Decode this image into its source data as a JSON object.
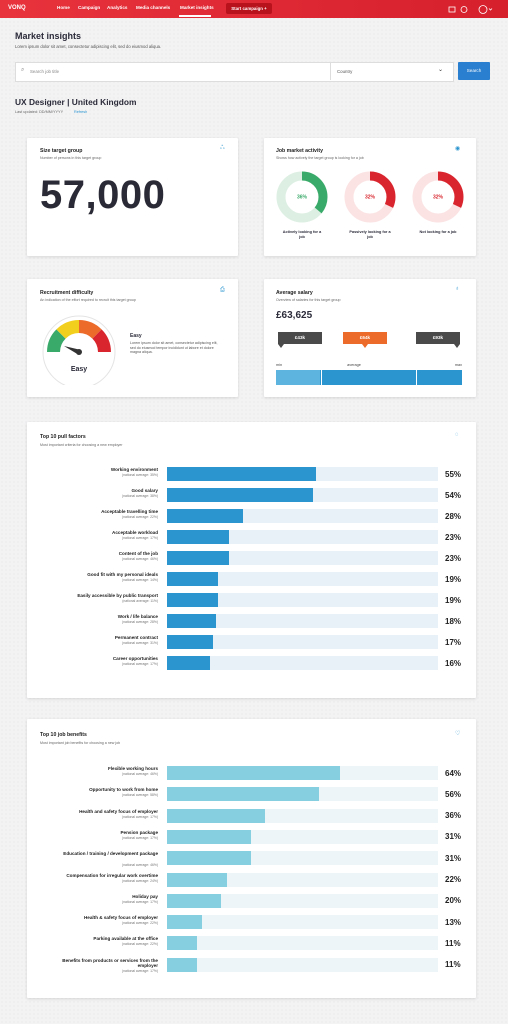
{
  "nav": {
    "brand": "VONQ",
    "links": [
      "Home",
      "Campaign",
      "Analytics",
      "Media channels",
      "Market insights"
    ],
    "cta": "Start campaign +"
  },
  "header": {
    "title": "Market insights",
    "subtitle": "Lorem ipsum dolor sit amet, consectetur adipiscing elit, sed do eiusmod aliqua."
  },
  "search": {
    "placeholder": "Search job title",
    "country": "Country",
    "button": "Search"
  },
  "profile": {
    "title": "UX Designer | United Kingdom",
    "updated": "Last updated: DD/MM/YYYY",
    "refresh": "Refresh"
  },
  "size_card": {
    "title": "Size target group",
    "subtitle": "Number of persons in this target group",
    "value": "57,000"
  },
  "activity_card": {
    "title": "Job market activity",
    "subtitle": "Shows how actively the target group is looking for a job",
    "segments": [
      {
        "label": "Actively looking for a job",
        "value": 36,
        "value_label": "36%",
        "color": "#3aaa6a"
      },
      {
        "label": "Passively looking for a job",
        "value": 32,
        "value_label": "32%",
        "color": "#d9262e"
      },
      {
        "label": "Not looking for a job",
        "value": 32,
        "value_label": "32%",
        "color": "#d9262e"
      }
    ]
  },
  "difficulty_card": {
    "title": "Recruitment difficulty",
    "subtitle": "An indication of the effort required to recruit this target group",
    "gauge_label": "Easy",
    "level": "Easy",
    "description": "Lorem ipsum dolor sit amet, consectetur adipiscing elit, sed do eiusmod tempor incididunt ut labore et dolore magna aliqua."
  },
  "salary_card": {
    "title": "Average salary",
    "subtitle": "Overview of salaries for this target group",
    "value": "£63,625",
    "markers": [
      "£43k",
      "£64k",
      "£93k"
    ],
    "scale": [
      "min",
      "average",
      "max"
    ]
  },
  "pull_factors": {
    "type": "bar",
    "title": "Top 10 pull factors",
    "subtitle": "Most important criteria for choosing a new employer",
    "categories": [
      "Working environment",
      "Good salary",
      "Acceptable travelling time",
      "Acceptable workload",
      "Content of the job",
      "Good fit with my personal ideals",
      "Easily accessible by public transport",
      "Work / life balance",
      "Permanent contract",
      "Career opportunities"
    ],
    "notes": [
      "(national average: 35%)",
      "(national average: 38%)",
      "(national average: 22%)",
      "(national average: 17%)",
      "(national average: 46%)",
      "(national average: 14%)",
      "(national average: 11%)",
      "(national average: 28%)",
      "(national average: 31%)",
      "(national average: 17%)"
    ],
    "values": [
      55,
      54,
      28,
      23,
      23,
      19,
      19,
      18,
      17,
      16
    ],
    "value_labels": [
      "55%",
      "54%",
      "28%",
      "23%",
      "23%",
      "19%",
      "19%",
      "18%",
      "17%",
      "16%"
    ],
    "color": "#2b95cf",
    "xlim": [
      0,
      100
    ]
  },
  "benefits": {
    "type": "bar",
    "title": "Top 10 job benefits",
    "subtitle": "Most important job benefits for choosing a new job",
    "categories": [
      "Flexible working hours",
      "Opportunity to work from home",
      "Health and safety focus of employer",
      "Pension package",
      "Education / training / development package",
      "Compensation for irregular work overtime",
      "Holiday pay",
      "Health & safety focus of employer",
      "Parking available at the office",
      "Benefits from products or services from the employer"
    ],
    "notes": [
      "(national average: 46%)",
      "(national average: 58%)",
      "(national average: 17%)",
      "(national average: 17%)",
      "(national average: 46%)",
      "(national average: 24%)",
      "(national average: 17%)",
      "(national average: 22%)",
      "(national average: 22%)",
      "(national average: 17%)"
    ],
    "values": [
      64,
      56,
      36,
      31,
      31,
      22,
      20,
      13,
      11,
      11
    ],
    "value_labels": [
      "64%",
      "56%",
      "36%",
      "31%",
      "31%",
      "22%",
      "20%",
      "13%",
      "11%",
      "11%"
    ],
    "color": "#86cfe0",
    "xlim": [
      0,
      100
    ]
  }
}
